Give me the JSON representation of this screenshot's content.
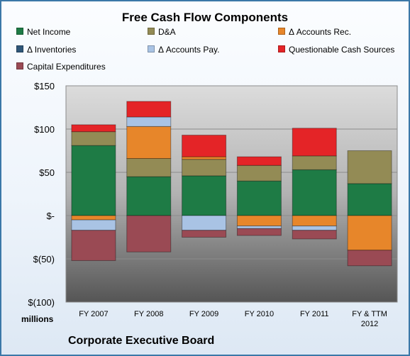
{
  "chart_data": {
    "type": "bar",
    "stacked": true,
    "title": "Free Cash Flow Components",
    "units": "millions",
    "categories": [
      "FY 2007",
      "FY 2008",
      "FY 2009",
      "FY 2010",
      "FY 2011",
      [
        "FY & TTM",
        "2012"
      ]
    ],
    "y_ticks": [
      "$(100)",
      "$(50)",
      "$-",
      "$50",
      "$100",
      "$150"
    ],
    "ylim": [
      -100,
      150
    ],
    "grid": true,
    "legend_position": "top",
    "series": [
      {
        "name": "Net Income",
        "color": "#1e7b45",
        "values": [
          81,
          45,
          46,
          40,
          53,
          37
        ]
      },
      {
        "name": "D&A",
        "color": "#938b55",
        "values": [
          16,
          21,
          19,
          18,
          16,
          38
        ]
      },
      {
        "name": "Δ Accounts Rec.",
        "color": "#e7862a",
        "values": [
          -5,
          37,
          3,
          -12,
          -12,
          -40
        ]
      },
      {
        "name": "Δ Inventories",
        "color": "#2f5678",
        "values": [
          0,
          0,
          0,
          0,
          0,
          0
        ]
      },
      {
        "name": "Δ Accounts Pay.",
        "color": "#a9c3e4",
        "values": [
          -12,
          11,
          -17,
          -3,
          -5,
          0
        ]
      },
      {
        "name": "Questionable Cash Sources",
        "color": "#e42427",
        "values": [
          8,
          18,
          25,
          10,
          32,
          0
        ]
      },
      {
        "name": "Capital Expenditures",
        "color": "#9a4a54",
        "values": [
          -35,
          -42,
          -8,
          -8,
          -10,
          -18
        ]
      }
    ]
  },
  "footer": {
    "company": "Corporate Executive Board"
  }
}
